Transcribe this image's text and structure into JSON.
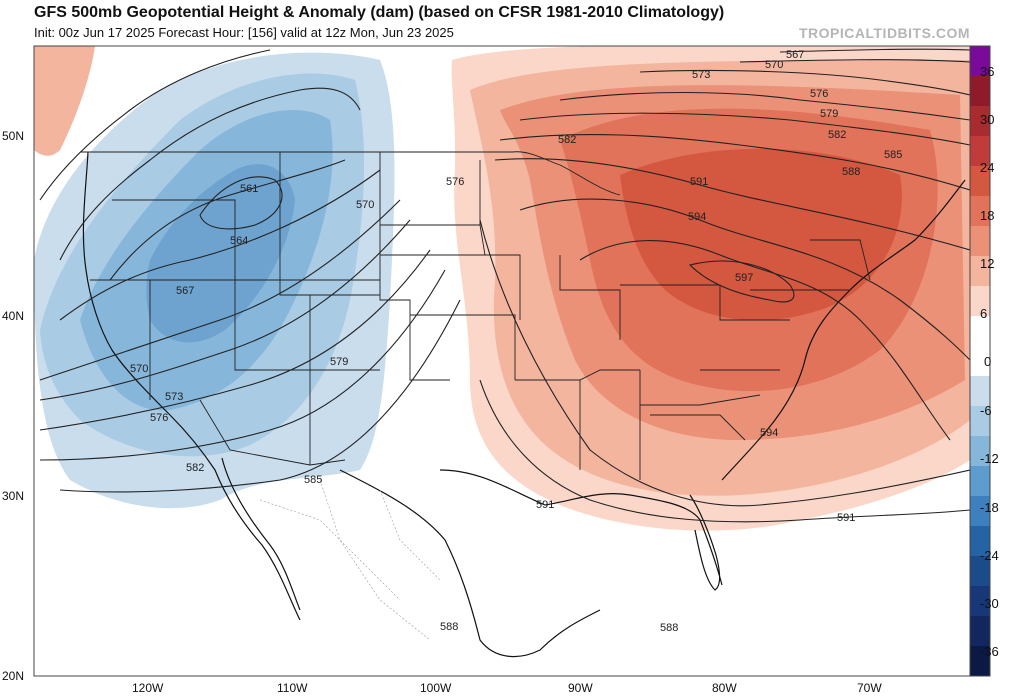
{
  "header": {
    "title": "GFS 500mb Geopotential Height & Anomaly (dam) (based on CFSR 1981-2010 Climatology)",
    "subtitle": "Init: 00z Jun 17 2025   Forecast Hour: [156]   valid at 12z Mon, Jun 23 2025",
    "brand": "TROPICALTIDBITS.COM"
  },
  "map": {
    "region": "Continental United States",
    "projection": "Lat/Lon",
    "lat_labels": [
      "50N",
      "40N",
      "30N",
      "20N"
    ],
    "lon_labels": [
      "120W",
      "110W",
      "100W",
      "90W",
      "80W",
      "70W"
    ],
    "contour_labels": [
      {
        "value": "567",
        "location": "northeast"
      },
      {
        "value": "570",
        "location": "northeast"
      },
      {
        "value": "573",
        "location": "Great Lakes north"
      },
      {
        "value": "576",
        "location": "Quebec"
      },
      {
        "value": "579",
        "location": "Quebec"
      },
      {
        "value": "582",
        "location": "Ontario"
      },
      {
        "value": "582",
        "location": "northern plains"
      },
      {
        "value": "585",
        "location": "Maine"
      },
      {
        "value": "588",
        "location": "New England"
      },
      {
        "value": "591",
        "location": "Great Lakes"
      },
      {
        "value": "594",
        "location": "Michigan"
      },
      {
        "value": "597",
        "location": "Ohio Valley"
      },
      {
        "value": "594",
        "location": "Atlantic off Carolinas"
      },
      {
        "value": "591",
        "location": "Atlantic south"
      },
      {
        "value": "591",
        "location": "Louisiana coast"
      },
      {
        "value": "588",
        "location": "Mexico"
      },
      {
        "value": "588",
        "location": "Caribbean"
      },
      {
        "value": "561",
        "location": "Montana"
      },
      {
        "value": "564",
        "location": "Idaho"
      },
      {
        "value": "567",
        "location": "Nevada"
      },
      {
        "value": "570",
        "location": "California"
      },
      {
        "value": "570",
        "location": "Wyoming"
      },
      {
        "value": "573",
        "location": "southern California"
      },
      {
        "value": "576",
        "location": "Baja"
      },
      {
        "value": "576",
        "location": "Dakotas"
      },
      {
        "value": "579",
        "location": "Colorado"
      },
      {
        "value": "582",
        "location": "Baja south"
      },
      {
        "value": "585",
        "location": "Arizona-Mexico border"
      }
    ],
    "colors": {
      "warm_anomaly": "#e0735a",
      "cool_anomaly": "#6fa3cf",
      "contour": "#222222",
      "border": "#111111"
    }
  },
  "colorbar": {
    "labels": [
      "36",
      "30",
      "24",
      "18",
      "12",
      "6",
      "0",
      "-6",
      "-12",
      "-18",
      "-24",
      "-30",
      "-36"
    ],
    "colors": [
      "#7a0b9a",
      "#8e1a2a",
      "#a82b30",
      "#c03c3a",
      "#d4573f",
      "#e0735a",
      "#eb9178",
      "#f4b59f",
      "#fad7c8",
      "#ffffff",
      "#ffffff",
      "#c9dded",
      "#a9cce4",
      "#86b7da",
      "#5e9ccd",
      "#3e80bd",
      "#2563a4",
      "#1c4b8a",
      "#173777",
      "#11275e",
      "#0b1a44"
    ]
  }
}
